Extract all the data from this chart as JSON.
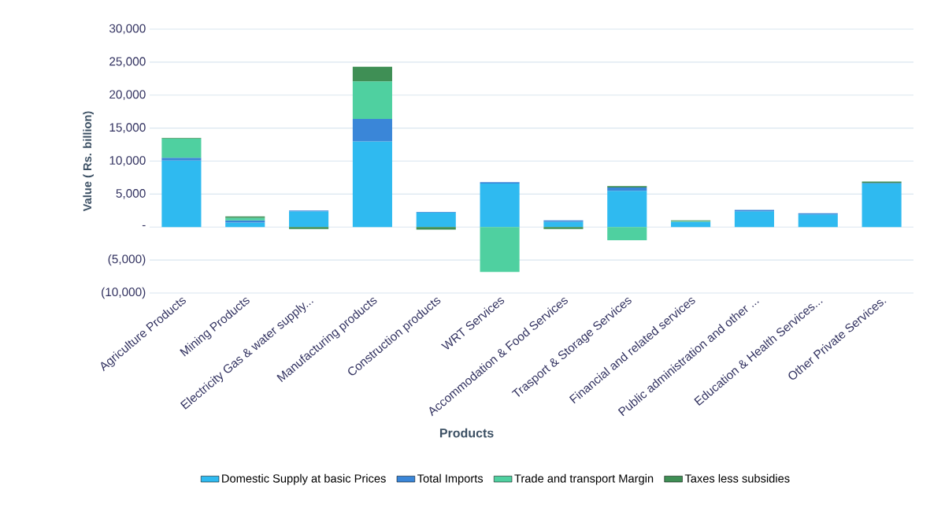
{
  "chart_data": {
    "type": "bar",
    "stacked": true,
    "xlabel": "Products",
    "ylabel": "Value ( Rs. billion)",
    "categories": [
      "Agriculture Products",
      "Mining Products",
      "Electricity Gas & water supply...",
      "Manufacturing products",
      "Construction products",
      "WRT Services",
      "Accommodation & Food Services",
      "Trasport & Storage Services",
      "Financial and related services",
      "Public administration and other ...",
      "Education & Health Services...",
      "Other Private Services."
    ],
    "series": [
      {
        "name": "Domestic Supply at basic Prices",
        "color": "#2fbaf0",
        "values": [
          10100,
          700,
          2400,
          13000,
          2200,
          6600,
          800,
          5500,
          800,
          2400,
          1900,
          6600
        ]
      },
      {
        "name": "Total Imports",
        "color": "#3a86d8",
        "values": [
          400,
          300,
          100,
          3400,
          100,
          200,
          200,
          500,
          0,
          200,
          200,
          100
        ]
      },
      {
        "name": "Trade and transport Margin",
        "color": "#4fd0a0",
        "values": [
          2900,
          400,
          0,
          5700,
          0,
          -6800,
          0,
          -2000,
          100,
          0,
          0,
          0
        ]
      },
      {
        "name": "Taxes less subsidies",
        "color": "#3f8f55",
        "values": [
          100,
          200,
          -300,
          2200,
          -400,
          0,
          -300,
          200,
          100,
          0,
          0,
          200
        ]
      }
    ],
    "ylim": [
      -10000,
      30000
    ],
    "yticks": [
      {
        "value": -10000,
        "label": "(10,000)"
      },
      {
        "value": -5000,
        "label": "(5,000)"
      },
      {
        "value": 0,
        "label": "-"
      },
      {
        "value": 5000,
        "label": "5,000"
      },
      {
        "value": 10000,
        "label": "10,000"
      },
      {
        "value": 15000,
        "label": "15,000"
      },
      {
        "value": 20000,
        "label": "20,000"
      },
      {
        "value": 25000,
        "label": "25,000"
      },
      {
        "value": 30000,
        "label": "30,000"
      }
    ],
    "grid": "y",
    "legend": "bottom"
  }
}
